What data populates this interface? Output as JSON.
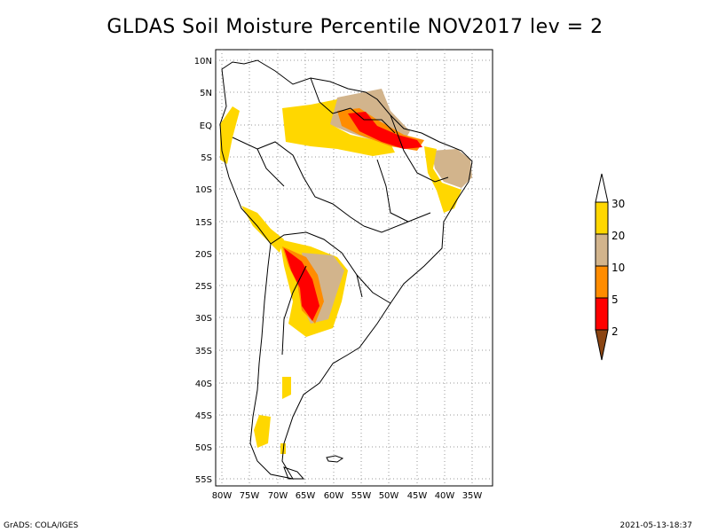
{
  "title": "GLDAS Soil Moisture Percentile NOV2017 lev = 2",
  "footer": {
    "left": "GrADS: COLA/IGES",
    "right": "2021-05-13-18:37"
  },
  "map": {
    "lat_labels": [
      "10N",
      "5N",
      "EQ",
      "5S",
      "10S",
      "15S",
      "20S",
      "25S",
      "30S",
      "35S",
      "40S",
      "45S",
      "50S",
      "55S"
    ],
    "lon_labels": [
      "80W",
      "75W",
      "70W",
      "65W",
      "60W",
      "55W",
      "50W",
      "45W",
      "40W",
      "35W"
    ],
    "lat_range": [
      -56,
      12
    ],
    "lon_range": [
      -81,
      -34
    ]
  },
  "legend": {
    "labels": [
      "30",
      "20",
      "10",
      "5",
      "2"
    ],
    "colors": {
      "above": "#ffffff",
      "p20_30": "#ffd700",
      "p10_20": "#d2b48c",
      "p5_10": "#ff8c00",
      "p2_5": "#ff0000",
      "below": "#8b4513"
    }
  },
  "colors": {
    "coast": "#000000",
    "grid": "#999999"
  }
}
